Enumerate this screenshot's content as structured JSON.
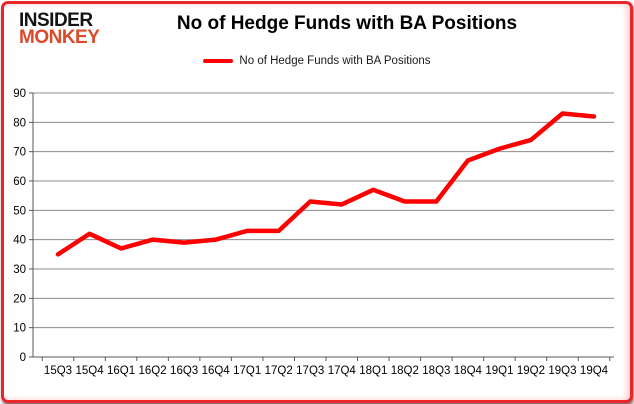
{
  "brand": {
    "line1": "INSIDER",
    "line2": "MONKEY"
  },
  "header": {
    "title": "No of Hedge Funds with BA Positions"
  },
  "legend": {
    "label": "No of Hedge Funds with BA Positions"
  },
  "colors": {
    "line": "#fe0000",
    "grid": "#8c8c8c",
    "axis": "#595959",
    "card_border": "#e8272b",
    "brand_black": "#141414",
    "brand_red": "#d84b2b",
    "text": "#000000"
  },
  "chart_data": {
    "type": "line",
    "title": "No of Hedge Funds with BA Positions",
    "series_name": "No of Hedge Funds with BA Positions",
    "categories": [
      "15Q3",
      "15Q4",
      "16Q1",
      "16Q2",
      "16Q3",
      "16Q4",
      "17Q1",
      "17Q2",
      "17Q3",
      "17Q4",
      "18Q1",
      "18Q2",
      "18Q3",
      "18Q4",
      "19Q1",
      "19Q2",
      "19Q3",
      "19Q4"
    ],
    "values": [
      35,
      42,
      37,
      40,
      39,
      40,
      43,
      43,
      53,
      52,
      57,
      53,
      53,
      67,
      71,
      74,
      83,
      82
    ],
    "xlabel": "",
    "ylabel": "",
    "ylim": [
      0,
      90
    ],
    "ytick_step": 10,
    "yticks": [
      0,
      10,
      20,
      30,
      40,
      50,
      60,
      70,
      80,
      90
    ],
    "grid": true,
    "legend_position": "top"
  }
}
